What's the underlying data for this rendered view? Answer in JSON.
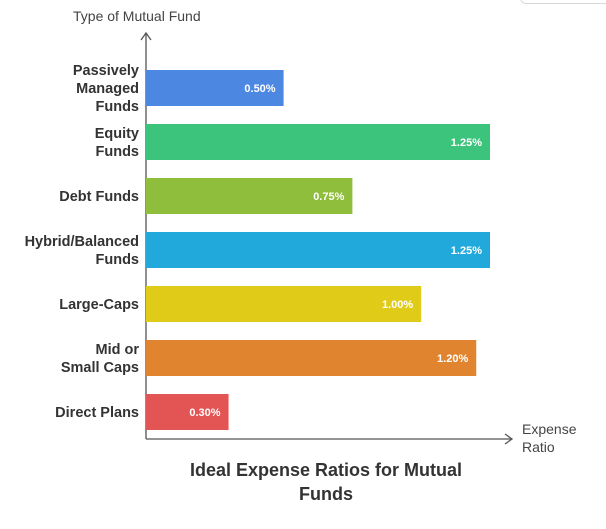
{
  "chart_data": {
    "type": "bar",
    "orientation": "horizontal",
    "title": "Ideal Expense Ratios for Mutual Funds",
    "title_lines": [
      "Ideal Expense Ratios for Mutual",
      "Funds"
    ],
    "xlabel": "Expense Ratio",
    "xlabel_lines": [
      "Expense",
      "Ratio"
    ],
    "ylabel": "Type of Mutual Fund",
    "categories": [
      "Passively Managed Funds",
      "Equity Funds",
      "Debt Funds",
      "Hybrid/Balanced Funds",
      "Large-Caps",
      "Mid or Small Caps",
      "Direct Plans"
    ],
    "category_lines": [
      [
        "Passively",
        "Managed",
        "Funds"
      ],
      [
        "Equity",
        "Funds"
      ],
      [
        "Debt Funds"
      ],
      [
        "Hybrid/Balanced",
        "Funds"
      ],
      [
        "Large-Caps"
      ],
      [
        "Mid or",
        "Small Caps"
      ],
      [
        "Direct Plans"
      ]
    ],
    "values": [
      0.5,
      1.25,
      0.75,
      1.25,
      1.0,
      1.2,
      0.3
    ],
    "value_labels": [
      "0.50%",
      "1.25%",
      "0.75%",
      "1.25%",
      "1.00%",
      "1.20%",
      "0.30%"
    ],
    "colors": [
      "#4c88e2",
      "#3cc47c",
      "#8fbd3c",
      "#21a9db",
      "#e0cc18",
      "#e08430",
      "#e35454"
    ],
    "xlim": [
      0,
      1.25
    ],
    "grid": false,
    "legend": "none"
  }
}
